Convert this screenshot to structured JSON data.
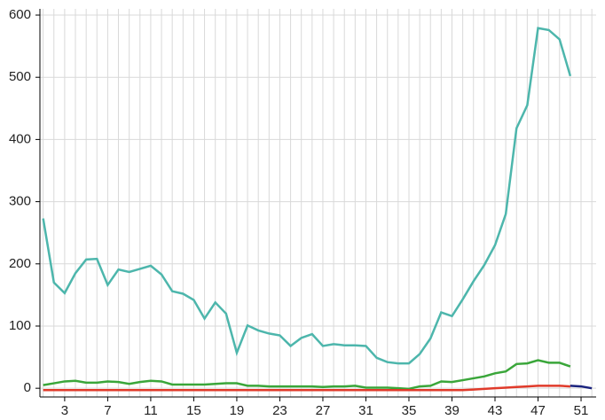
{
  "chart_data": {
    "type": "line",
    "x": [
      1,
      2,
      3,
      4,
      5,
      6,
      7,
      8,
      9,
      10,
      11,
      12,
      13,
      14,
      15,
      16,
      17,
      18,
      19,
      20,
      21,
      22,
      23,
      24,
      25,
      26,
      27,
      28,
      29,
      30,
      31,
      32,
      33,
      34,
      35,
      36,
      37,
      38,
      39,
      40,
      41,
      42,
      43,
      44,
      45,
      46,
      47,
      48,
      49,
      50,
      51,
      52
    ],
    "xlim": [
      0.7,
      52.4
    ],
    "xticks": [
      3,
      7,
      11,
      15,
      19,
      23,
      27,
      31,
      35,
      39,
      43,
      47,
      51
    ],
    "ylim": [
      -14,
      610
    ],
    "yticks": [
      0,
      100,
      200,
      300,
      400,
      500,
      600
    ],
    "grid": true,
    "series": [
      {
        "color": "#4db6ac",
        "values": [
          273,
          170,
          153,
          185,
          207,
          208,
          166,
          191,
          187,
          192,
          197,
          183,
          156,
          152,
          142,
          112,
          138,
          120,
          57,
          101,
          93,
          88,
          85,
          68,
          81,
          87,
          68,
          71,
          69,
          69,
          68,
          49,
          42,
          40,
          40,
          55,
          80,
          122,
          116,
          143,
          172,
          198,
          230,
          280,
          418,
          455,
          579,
          576,
          561,
          502,
          null,
          null
        ]
      },
      {
        "color": "#3aa63a",
        "values": [
          5,
          8,
          11,
          12,
          9,
          9,
          11,
          10,
          7,
          10,
          12,
          11,
          6,
          6,
          6,
          6,
          7,
          8,
          8,
          4,
          4,
          3,
          3,
          3,
          3,
          3,
          2,
          3,
          3,
          4,
          1,
          1,
          1,
          0,
          -1,
          3,
          4,
          11,
          10,
          13,
          16,
          19,
          24,
          27,
          39,
          40,
          45,
          41,
          41,
          35,
          null,
          null
        ]
      },
      {
        "color": "#e03a2a",
        "values": [
          -3,
          -3,
          -3,
          -3,
          -3,
          -3,
          -3,
          -3,
          -3,
          -3,
          -3,
          -3,
          -3,
          -3,
          -3,
          -3,
          -3,
          -3,
          -3,
          -3,
          -3,
          -3,
          -3,
          -3,
          -3,
          -3,
          -3,
          -3,
          -3,
          -3,
          -3,
          -3,
          -3,
          -3,
          -3,
          -3,
          -3,
          -3,
          -3,
          -3,
          -2,
          -1,
          0,
          1,
          2,
          3,
          4,
          4,
          4,
          3,
          null,
          null
        ]
      },
      {
        "color": "#1a237e",
        "values": [
          null,
          null,
          null,
          null,
          null,
          null,
          null,
          null,
          null,
          null,
          null,
          null,
          null,
          null,
          null,
          null,
          null,
          null,
          null,
          null,
          null,
          null,
          null,
          null,
          null,
          null,
          null,
          null,
          null,
          null,
          null,
          null,
          null,
          null,
          null,
          null,
          null,
          null,
          null,
          null,
          null,
          null,
          null,
          null,
          null,
          null,
          null,
          null,
          null,
          4,
          3,
          0
        ]
      }
    ]
  }
}
